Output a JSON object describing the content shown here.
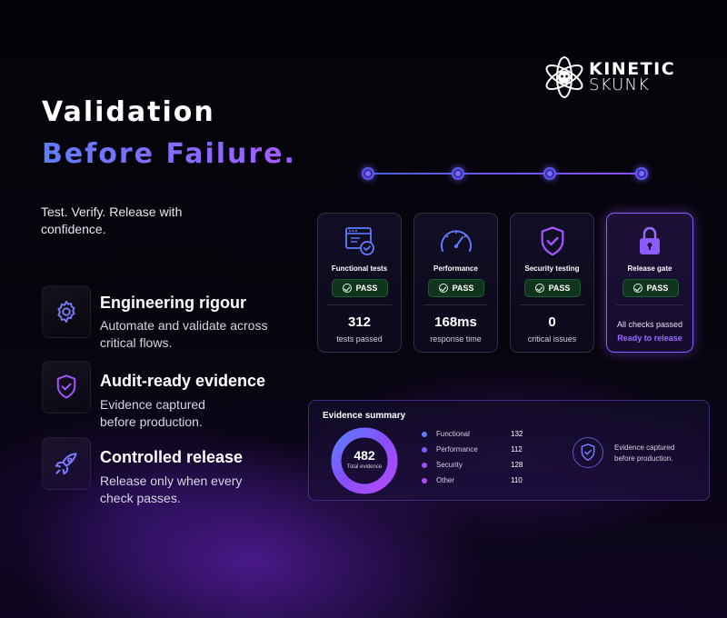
{
  "brand": {
    "line1": "KINETIC",
    "line2": "SKUNK"
  },
  "headline": {
    "line1": "Validation",
    "line2": "Before Failure."
  },
  "tagline": "Test. Verify. Release with confidence.",
  "features": [
    {
      "title": "Engineering rigour",
      "desc": "Automate and validate across critical flows.",
      "icon": "gear-icon"
    },
    {
      "title": "Audit-ready evidence",
      "desc": "Evidence captured before production.",
      "icon": "shield-check-icon"
    },
    {
      "title": "Controlled release",
      "desc": "Release only when every check passes.",
      "icon": "rocket-icon"
    }
  ],
  "cards": [
    {
      "name": "Functional tests",
      "status": "PASS",
      "value": "312",
      "label": "tests passed",
      "icon": "browser-check-icon"
    },
    {
      "name": "Performance",
      "status": "PASS",
      "value": "168ms",
      "label": "response time",
      "icon": "speedometer-icon"
    },
    {
      "name": "Security testing",
      "status": "PASS",
      "value": "0",
      "label": "critical issues",
      "icon": "shield-check-icon"
    },
    {
      "name": "Release gate",
      "status": "PASS",
      "note": "All checks passed",
      "ready": "Ready to release",
      "icon": "lock-icon"
    }
  ],
  "evidence": {
    "title": "Evidence summary",
    "total": "482",
    "total_label": "Total evidence",
    "items": [
      {
        "name": "Functional",
        "value": "132",
        "color": "#5b7cff"
      },
      {
        "name": "Performance",
        "value": "112",
        "color": "#7a5cff"
      },
      {
        "name": "Security",
        "value": "128",
        "color": "#9a4dff"
      },
      {
        "name": "Other",
        "value": "110",
        "color": "#b04dff"
      }
    ],
    "note": "Evidence captured before production."
  },
  "colors": {
    "accent_blue": "#5f7dff",
    "accent_purple": "#9b6bff",
    "pass_green": "#11341f"
  }
}
